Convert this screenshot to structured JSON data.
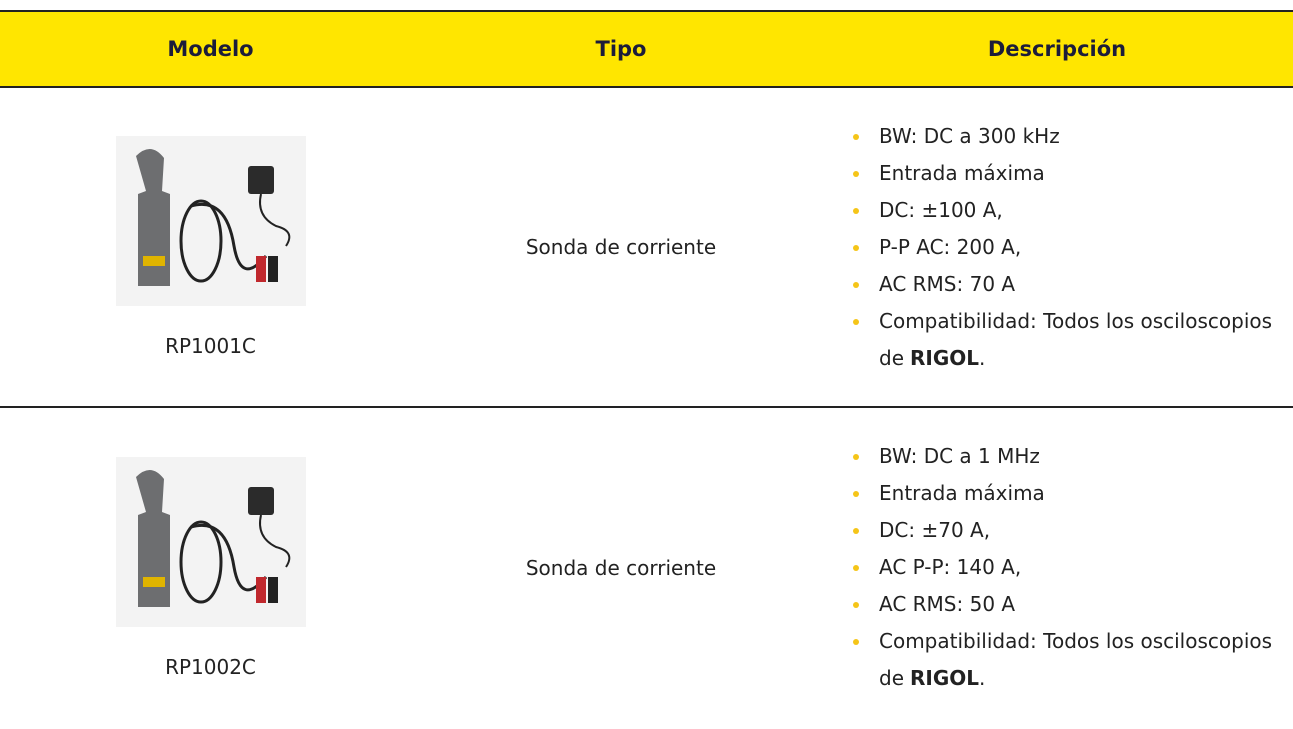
{
  "table": {
    "header": [
      "Modelo",
      "Tipo",
      "Descripción"
    ],
    "rows": [
      {
        "model": "RP1001C",
        "type": "Sonda de corriente",
        "description": [
          "BW: DC a 300 kHz",
          "Entrada máxima",
          "DC: ±100 A,",
          "P-P AC: 200 A,",
          "AC RMS: 70 A"
        ],
        "compat": {
          "text": "Compatibilidad: Todos los osciloscopios de",
          "bold": "RIGOL",
          "end": "."
        }
      },
      {
        "model": "RP1002C",
        "type": "Sonda de corriente",
        "description": [
          "BW: DC a 1 MHz",
          "Entrada máxima",
          "DC: ±70 A,",
          "AC P-P: 140 A,",
          "AC RMS: 50 A"
        ],
        "compat": {
          "text": "Compatibilidad: Todos los osciloscopios de",
          "bold": "RIGOL",
          "end": "."
        }
      }
    ]
  }
}
